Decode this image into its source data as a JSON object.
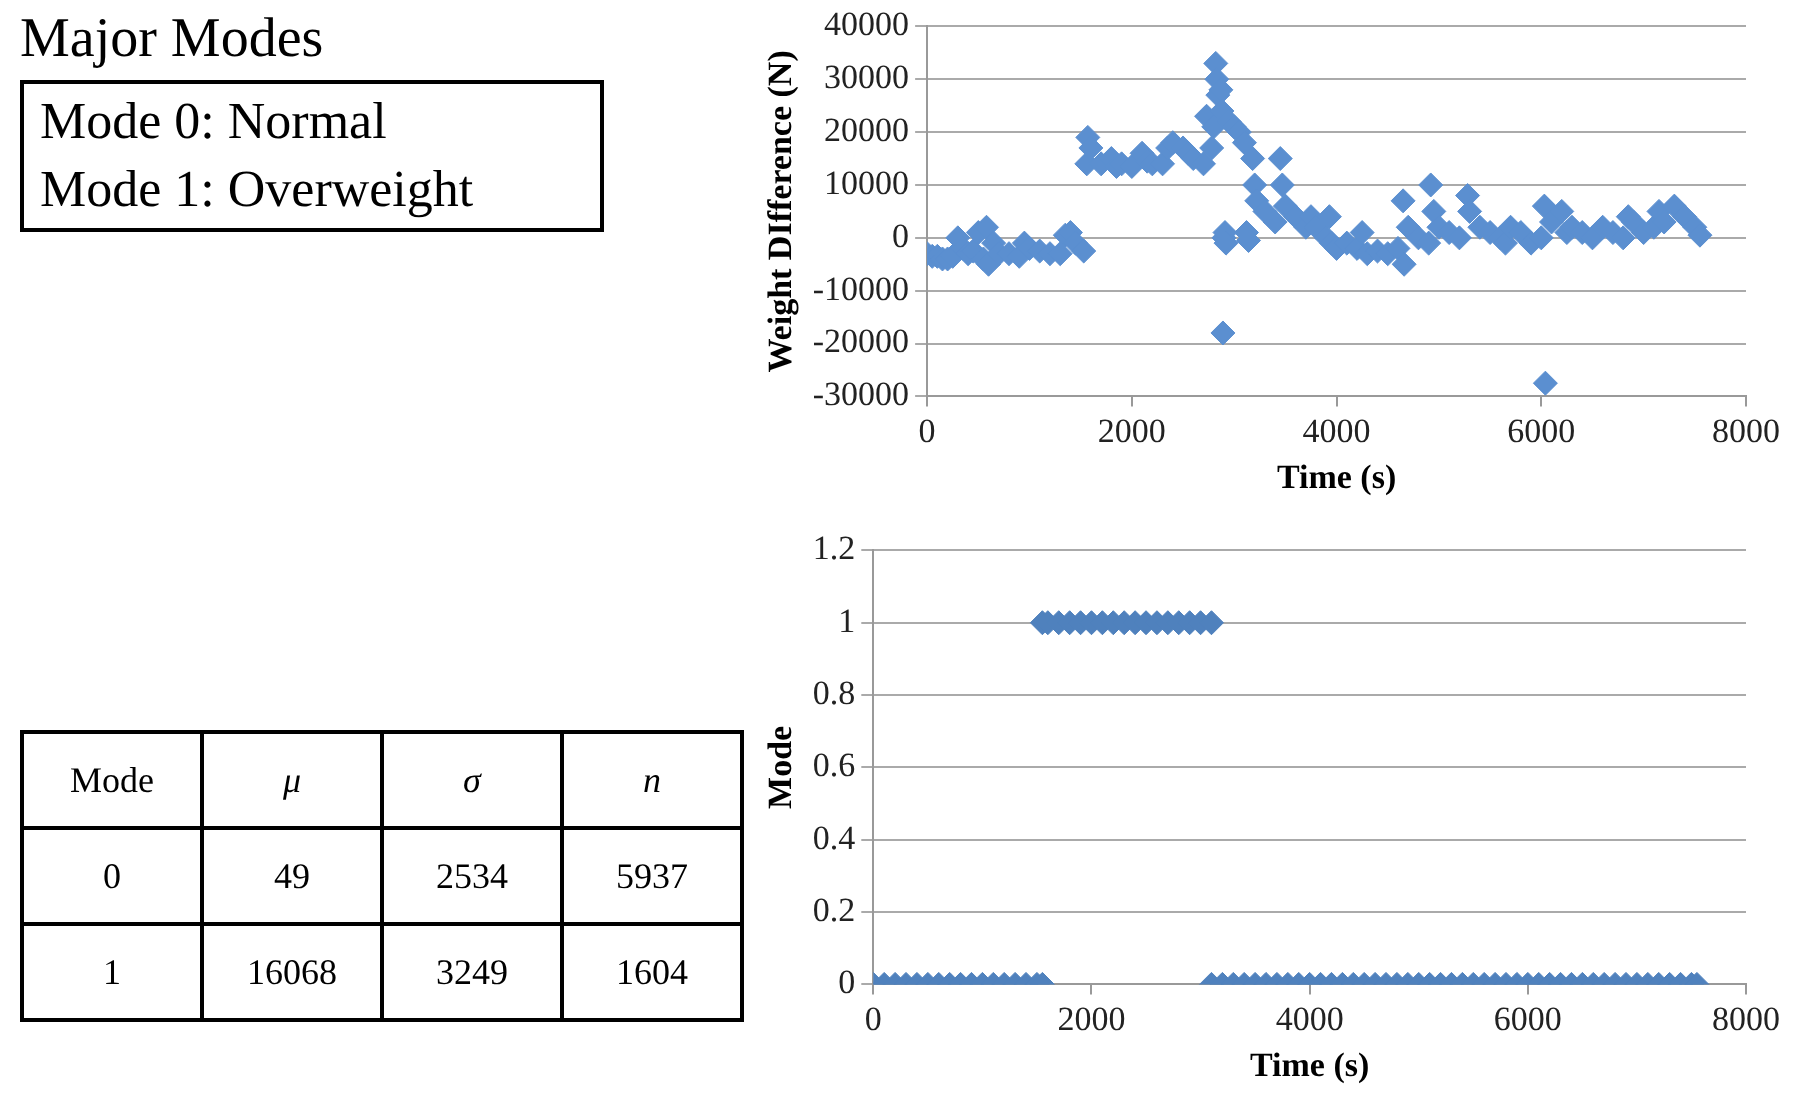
{
  "chart_data": [
    {
      "type": "other",
      "title": "Major Modes",
      "annotations": [
        "Mode 0: Normal",
        "Mode 1: Overweight"
      ]
    },
    {
      "type": "scatter",
      "xlabel": "Time (s)",
      "ylabel": "Weight DIfference (N)",
      "xlim": [
        0,
        8000
      ],
      "xticks": [
        0,
        2000,
        4000,
        6000,
        8000
      ],
      "ylim": [
        -30000,
        40000
      ],
      "yticks": [
        -30000,
        -20000,
        -10000,
        0,
        10000,
        20000,
        30000,
        40000
      ],
      "grid": "y",
      "legend": false,
      "marker": "diamond",
      "series": [
        {
          "color": "#5b8fd0",
          "x": [
            0,
            50,
            100,
            150,
            200,
            250,
            300,
            350,
            400,
            450,
            500,
            550,
            580,
            600,
            650,
            700,
            800,
            900,
            950,
            1000,
            1100,
            1200,
            1300,
            1350,
            1400,
            1450,
            1530,
            1560,
            1570,
            1600,
            1700,
            1800,
            1850,
            1900,
            2000,
            2100,
            2150,
            2200,
            2300,
            2350,
            2400,
            2500,
            2550,
            2600,
            2700,
            2730,
            2780,
            2800,
            2820,
            2830,
            2840,
            2870,
            2880,
            2890,
            2900,
            2910,
            2920,
            2950,
            3000,
            3050,
            3100,
            3120,
            3140,
            3180,
            3200,
            3220,
            3300,
            3400,
            3450,
            3470,
            3500,
            3600,
            3700,
            3750,
            3800,
            3900,
            3930,
            3950,
            4000,
            4100,
            4200,
            4250,
            4300,
            4400,
            4500,
            4600,
            4650,
            4660,
            4700,
            4800,
            4900,
            4920,
            4950,
            5000,
            5100,
            5200,
            5280,
            5300,
            5400,
            5500,
            5600,
            5650,
            5700,
            5800,
            5900,
            6000,
            6030,
            6040,
            6100,
            6200,
            6250,
            6300,
            6400,
            6500,
            6600,
            6700,
            6800,
            6850,
            6900,
            7000,
            7100,
            7150,
            7200,
            7300,
            7400,
            7500,
            7550
          ],
          "values": [
            -3000,
            -3500,
            -3500,
            -4000,
            -4000,
            -3500,
            0,
            -2000,
            -3000,
            -2500,
            1000,
            -4000,
            2000,
            -5000,
            -1000,
            -3000,
            -3000,
            -3500,
            -1000,
            -2000,
            -2500,
            -3000,
            -3000,
            500,
            1000,
            -1000,
            -2500,
            14000,
            19000,
            17000,
            14000,
            15000,
            13500,
            14000,
            13500,
            16000,
            14500,
            14000,
            14000,
            17000,
            18000,
            17000,
            16000,
            15000,
            14000,
            23000,
            17000,
            21000,
            33000,
            30000,
            27000,
            28000,
            24000,
            -18000,
            0,
            1000,
            -1000,
            22000,
            21000,
            20000,
            18000,
            1000,
            -500,
            15000,
            10000,
            7000,
            5000,
            3000,
            15000,
            10000,
            6000,
            4000,
            2000,
            4000,
            2000,
            0,
            4000,
            -1000,
            -2000,
            -1000,
            -2000,
            1000,
            -3000,
            -2500,
            -3000,
            -2000,
            7000,
            -5000,
            2000,
            0,
            -1000,
            10000,
            5000,
            2000,
            1000,
            0,
            8000,
            5000,
            2000,
            1000,
            0,
            -1000,
            2000,
            1000,
            -1000,
            0,
            6000,
            -27500,
            3000,
            5000,
            1000,
            2000,
            1000,
            0,
            2000,
            1000,
            0,
            4000,
            3000,
            1000,
            2000,
            5000,
            3000,
            6000,
            4000,
            2000,
            500
          ]
        }
      ]
    },
    {
      "type": "heatmap",
      "ylabel": "Mode",
      "categories": [
        "μ",
        "σ",
        "n"
      ],
      "y_categories": [
        "0",
        "1"
      ],
      "cells": [
        [
          49,
          2534,
          5937
        ],
        [
          16068,
          3249,
          1604
        ]
      ],
      "data_labels": true
    },
    {
      "type": "scatter",
      "xlabel": "Time (s)",
      "ylabel": "Mode",
      "xlim": [
        0,
        8000
      ],
      "xticks": [
        0,
        2000,
        4000,
        6000,
        8000
      ],
      "ylim": [
        0,
        1.2
      ],
      "yticks": [
        0,
        0.2,
        0.4,
        0.6,
        0.8,
        1,
        1.2
      ],
      "grid": "y",
      "legend": false,
      "marker": "diamond",
      "series": [
        {
          "color": "#4f81bd",
          "x": [
            0,
            100,
            200,
            300,
            400,
            500,
            600,
            700,
            800,
            900,
            1000,
            1100,
            1200,
            1300,
            1400,
            1500,
            1550,
            1550,
            1600,
            1700,
            1800,
            1900,
            2000,
            2100,
            2200,
            2300,
            2400,
            2500,
            2600,
            2700,
            2800,
            2900,
            3000,
            3100,
            3100,
            3200,
            3300,
            3400,
            3500,
            3600,
            3700,
            3800,
            3900,
            4000,
            4100,
            4200,
            4300,
            4400,
            4500,
            4600,
            4700,
            4800,
            4900,
            5000,
            5100,
            5200,
            5300,
            5400,
            5500,
            5600,
            5700,
            5800,
            5900,
            6000,
            6100,
            6200,
            6300,
            6400,
            6500,
            6600,
            6700,
            6800,
            6900,
            7000,
            7100,
            7200,
            7300,
            7400,
            7500,
            7550
          ],
          "values": [
            0,
            0,
            0,
            0,
            0,
            0,
            0,
            0,
            0,
            0,
            0,
            0,
            0,
            0,
            0,
            0,
            0,
            1,
            1,
            1,
            1,
            1,
            1,
            1,
            1,
            1,
            1,
            1,
            1,
            1,
            1,
            1,
            1,
            1,
            0,
            0,
            0,
            0,
            0,
            0,
            0,
            0,
            0,
            0,
            0,
            0,
            0,
            0,
            0,
            0,
            0,
            0,
            0,
            0,
            0,
            0,
            0,
            0,
            0,
            0,
            0,
            0,
            0,
            0,
            0,
            0,
            0,
            0,
            0,
            0,
            0,
            0,
            0,
            0,
            0,
            0,
            0,
            0,
            0,
            0
          ]
        }
      ]
    }
  ]
}
